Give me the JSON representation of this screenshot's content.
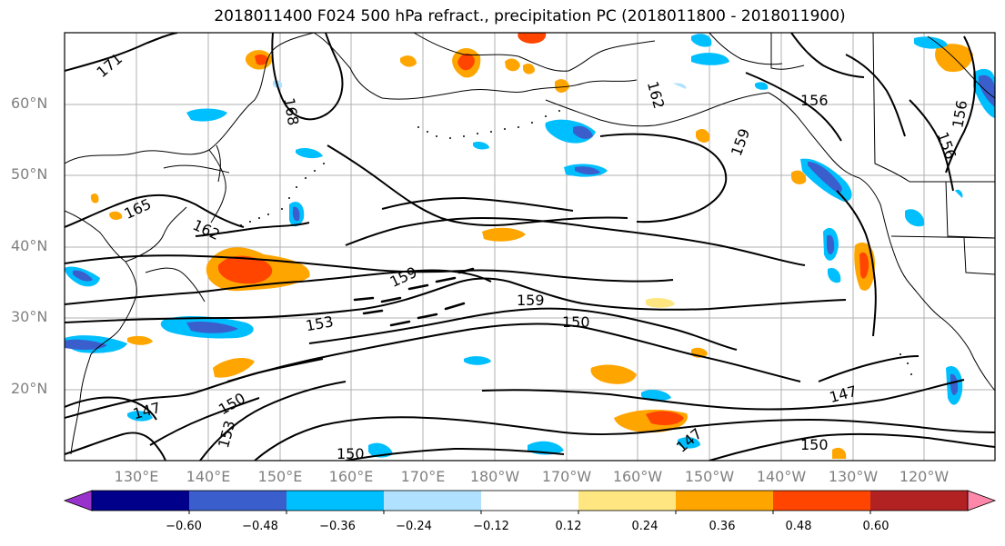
{
  "title": "2018011400 F024 500 hPa refract., precipitation PC (2018011800 - 2018011900)",
  "lat_labels": [
    "60°N",
    "50°N",
    "40°N",
    "30°N",
    "20°N"
  ],
  "lon_labels": [
    "130°E",
    "140°E",
    "150°E",
    "160°E",
    "170°E",
    "180°W",
    "170°W",
    "160°W",
    "150°W",
    "140°W",
    "130°W",
    "120°W"
  ],
  "contour_labels": [
    "171",
    "168",
    "165",
    "162",
    "162",
    "159",
    "159",
    "159",
    "156",
    "156",
    "156",
    "153",
    "153",
    "150",
    "150",
    "150",
    "150",
    "147",
    "147",
    "147"
  ],
  "colorbar": {
    "tick_labels": [
      "−0.60",
      "−0.48",
      "−0.36",
      "−0.24",
      "−0.12",
      "0.12",
      "0.24",
      "0.36",
      "0.48",
      "0.60"
    ],
    "colors": [
      "#9932cc",
      "#00008b",
      "#3a5fcd",
      "#00bfff",
      "#b0e2ff",
      "#ffffff",
      "#ffe680",
      "#ffa500",
      "#ff4500",
      "#b22222",
      "#ff88aa"
    ]
  }
}
